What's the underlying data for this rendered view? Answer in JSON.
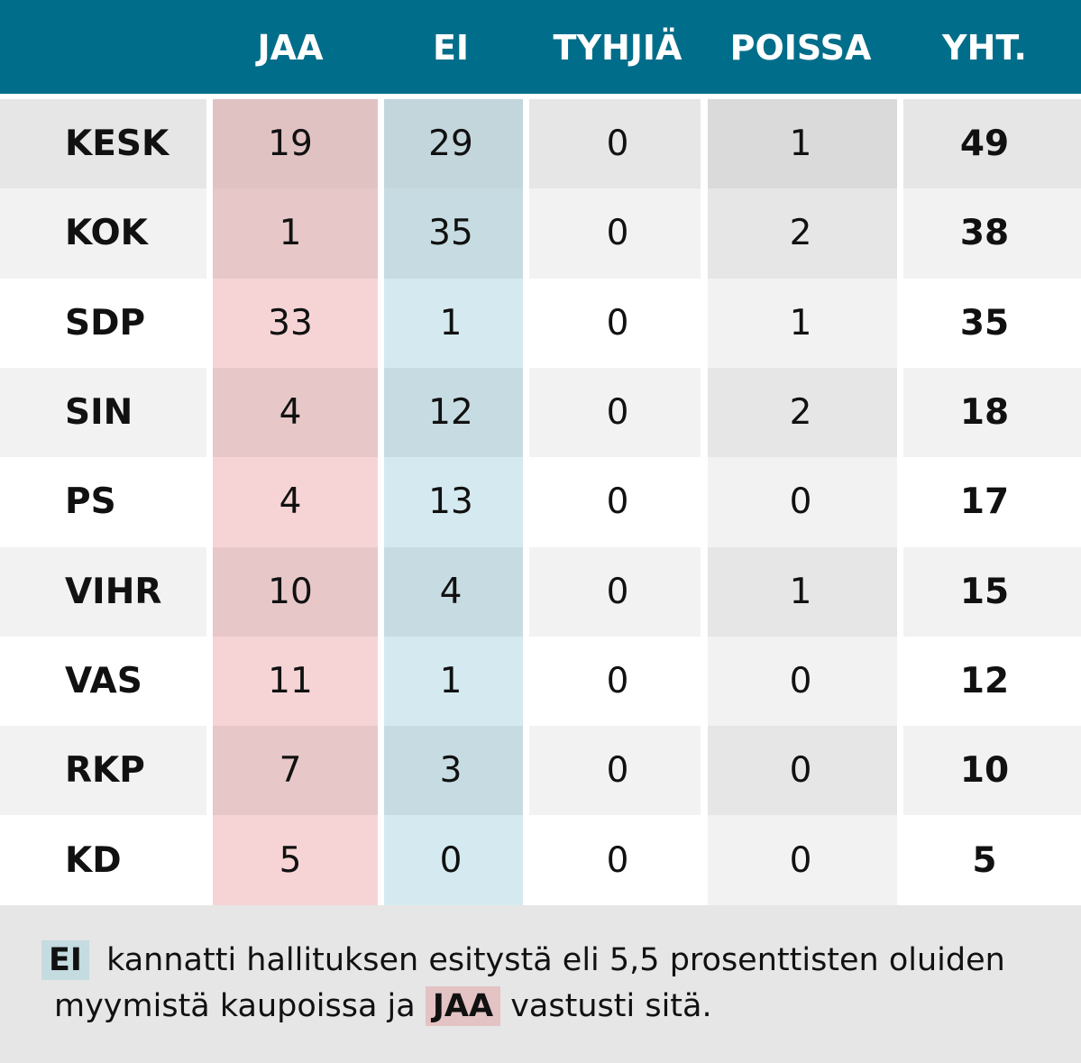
{
  "chart_data": {
    "type": "table",
    "columns": [
      "JAA",
      "EI",
      "TYHJIÄ",
      "POISSA",
      "YHT."
    ],
    "rows": [
      {
        "party": "KESK",
        "values": [
          19,
          29,
          0,
          1,
          49
        ]
      },
      {
        "party": "KOK",
        "values": [
          1,
          35,
          0,
          2,
          38
        ]
      },
      {
        "party": "SDP",
        "values": [
          33,
          1,
          0,
          1,
          35
        ]
      },
      {
        "party": "SIN",
        "values": [
          4,
          12,
          0,
          2,
          18
        ]
      },
      {
        "party": "PS",
        "values": [
          4,
          13,
          0,
          0,
          17
        ]
      },
      {
        "party": "VIHR",
        "values": [
          10,
          4,
          0,
          1,
          15
        ]
      },
      {
        "party": "VAS",
        "values": [
          11,
          1,
          0,
          0,
          12
        ]
      },
      {
        "party": "RKP",
        "values": [
          7,
          3,
          0,
          0,
          10
        ]
      },
      {
        "party": "KD",
        "values": [
          5,
          0,
          0,
          0,
          5
        ]
      }
    ]
  },
  "colors": {
    "header": "#006e8a",
    "jaa": "#f6d4d5",
    "ei": "#d4eaf0",
    "neutral_light": "#f2f2f2",
    "neutral_dark": "#e6e6e6"
  },
  "footer": {
    "ei_tag": "EI",
    "text_1": "kannatti hallituksen esitystä eli 5,5 prosenttisten oluiden myymistä kaupoissa ja",
    "jaa_tag": "JAA",
    "text_2": "vastusti sitä."
  }
}
